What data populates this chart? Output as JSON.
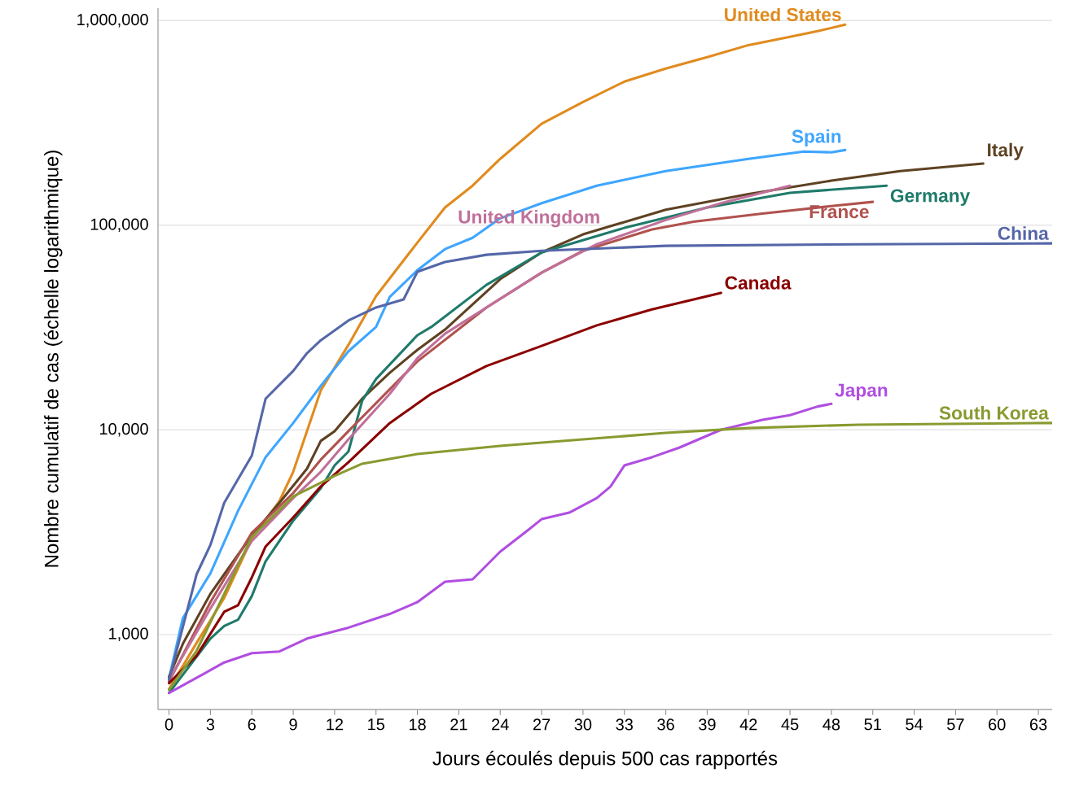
{
  "chart_data": {
    "type": "line",
    "xlabel": "Jours écoulés depuis 500 cas rapportés",
    "ylabel": "Nombre cumulatif de cas (échelle logarithmique)",
    "log": "y",
    "grid": "y",
    "xlim": [
      -0.8,
      64
    ],
    "xticks": [
      0,
      3,
      6,
      9,
      12,
      15,
      18,
      21,
      24,
      27,
      30,
      33,
      36,
      39,
      42,
      45,
      48,
      51,
      54,
      57,
      60,
      63
    ],
    "ylim": [
      430,
      1150000
    ],
    "yticks": [
      {
        "value": 1000,
        "label": "1,000"
      },
      {
        "value": 10000,
        "label": "10,000"
      },
      {
        "value": 100000,
        "label": "100,000"
      },
      {
        "value": 1000000,
        "label": "1,000,000"
      }
    ],
    "series": [
      {
        "name": "United States",
        "color": "#e08b1e",
        "x": [
          0,
          2,
          4,
          6,
          8,
          9,
          11,
          13,
          15,
          17,
          18,
          20,
          22,
          24,
          27,
          30,
          33,
          36,
          39,
          42,
          45,
          47,
          49
        ],
        "values": [
          540,
          910,
          1510,
          2940,
          4480,
          6240,
          15600,
          26000,
          45000,
          67300,
          82200,
          122000,
          156000,
          211000,
          313000,
          400000,
          503000,
          583000,
          662000,
          759000,
          832000,
          887000,
          955000
        ]
      },
      {
        "name": "Spain",
        "color": "#3ea6ff",
        "x": [
          0,
          1,
          3,
          5,
          7,
          9,
          11,
          13,
          15,
          16,
          18,
          20,
          22,
          24,
          27,
          31,
          36,
          42,
          46,
          48,
          49
        ],
        "values": [
          610,
          1200,
          1990,
          4020,
          7350,
          10800,
          16400,
          24200,
          31800,
          44600,
          60300,
          76400,
          86800,
          108000,
          128000,
          156000,
          184000,
          211000,
          229000,
          227000,
          233000
        ]
      },
      {
        "name": "Italy",
        "color": "#5e4222",
        "x": [
          0,
          1,
          3,
          4,
          6,
          8,
          10,
          11,
          12,
          14,
          16,
          18,
          20,
          24,
          27,
          30,
          36,
          42,
          48,
          53,
          59
        ],
        "values": [
          621,
          900,
          1580,
          1970,
          3050,
          4400,
          6460,
          8830,
          9850,
          14200,
          19000,
          24600,
          30900,
          54500,
          73600,
          90200,
          119000,
          142000,
          165000,
          184000,
          200000
        ]
      },
      {
        "name": "Germany",
        "color": "#1f7a6a",
        "x": [
          0,
          3,
          4,
          5,
          6,
          7,
          9,
          11,
          12,
          13,
          14,
          15,
          18,
          19,
          23,
          27,
          33,
          39,
          45,
          52
        ],
        "values": [
          518,
          955,
          1100,
          1180,
          1540,
          2280,
          3600,
          5190,
          6700,
          7830,
          13900,
          17700,
          29000,
          31800,
          51100,
          73600,
          97000,
          122000,
          144000,
          156000
        ]
      },
      {
        "name": "France",
        "color": "#b0524e",
        "x": [
          0,
          3,
          6,
          9,
          11,
          13,
          16,
          18,
          23,
          27,
          30,
          35,
          38,
          43,
          48,
          51
        ],
        "values": [
          590,
          1440,
          3140,
          4910,
          7150,
          9850,
          15800,
          21600,
          39600,
          58600,
          75000,
          95300,
          104000,
          114000,
          124000,
          130000
        ]
      },
      {
        "name": "United Kingdom",
        "color": "#c0709a",
        "x": [
          0,
          3,
          6,
          9,
          11,
          13,
          16,
          18,
          20,
          23,
          27,
          31,
          36,
          40,
          45
        ],
        "values": [
          600,
          1340,
          2860,
          4640,
          6240,
          8990,
          15000,
          22400,
          29500,
          39600,
          58600,
          80700,
          106000,
          128000,
          156000
        ]
      },
      {
        "name": "China",
        "color": "#5567a8",
        "x": [
          0,
          2,
          3,
          4,
          6,
          7,
          9,
          10,
          11,
          13,
          15,
          17,
          18,
          20,
          23,
          27,
          36,
          50,
          64
        ],
        "values": [
          600,
          1970,
          2740,
          4400,
          7480,
          14200,
          19400,
          23700,
          27400,
          34200,
          39600,
          43400,
          59200,
          66100,
          71700,
          75000,
          79300,
          80700,
          81500
        ]
      },
      {
        "name": "Canada",
        "color": "#8b0000",
        "x": [
          0,
          2,
          4,
          5,
          6,
          7,
          9,
          11,
          13,
          16,
          19,
          23,
          27,
          31,
          35,
          40
        ],
        "values": [
          578,
          789,
          1290,
          1390,
          1900,
          2690,
          3730,
          5290,
          6950,
          10800,
          15000,
          20500,
          25700,
          32400,
          38800,
          46700
        ]
      },
      {
        "name": "Japan",
        "color": "#b04ee0",
        "x": [
          0,
          4,
          6,
          8,
          10,
          13,
          16,
          18,
          20,
          22,
          24,
          26,
          27,
          29,
          31,
          32,
          33,
          35,
          37,
          40,
          43,
          45,
          47,
          48
        ],
        "values": [
          518,
          730,
          811,
          826,
          955,
          1080,
          1260,
          1440,
          1810,
          1860,
          2540,
          3230,
          3660,
          3940,
          4640,
          5290,
          6700,
          7350,
          8200,
          10000,
          11200,
          11800,
          13000,
          13400
        ]
      },
      {
        "name": "South Korea",
        "color": "#8a9a30",
        "x": [
          0,
          2,
          6,
          9,
          12,
          14,
          16,
          18,
          24,
          30,
          36,
          42,
          50,
          64
        ],
        "values": [
          537,
          833,
          3000,
          4730,
          5960,
          6830,
          7210,
          7620,
          8350,
          8990,
          9660,
          10200,
          10600,
          10800
        ]
      }
    ]
  }
}
